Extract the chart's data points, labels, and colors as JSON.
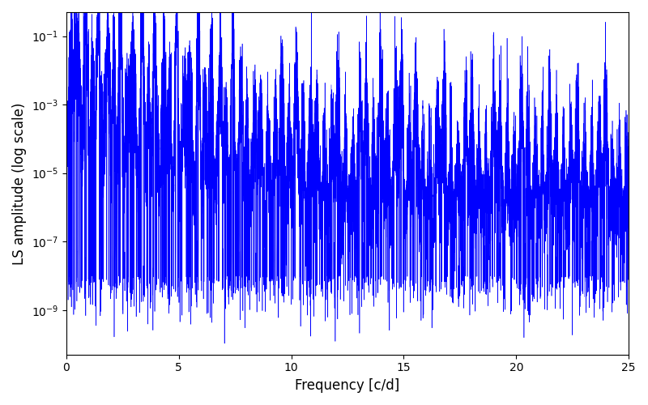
{
  "xlabel": "Frequency [c/d]",
  "ylabel": "LS amplitude (log scale)",
  "xlim": [
    0,
    25
  ],
  "ylim": [
    5e-11,
    0.5
  ],
  "line_color": "#0000ff",
  "line_width": 0.4,
  "background_color": "#ffffff",
  "seed": 12345,
  "n_points": 15000,
  "freq_max": 25.0,
  "yticks": [
    1e-09,
    1e-07,
    1e-05,
    0.001,
    0.1
  ]
}
